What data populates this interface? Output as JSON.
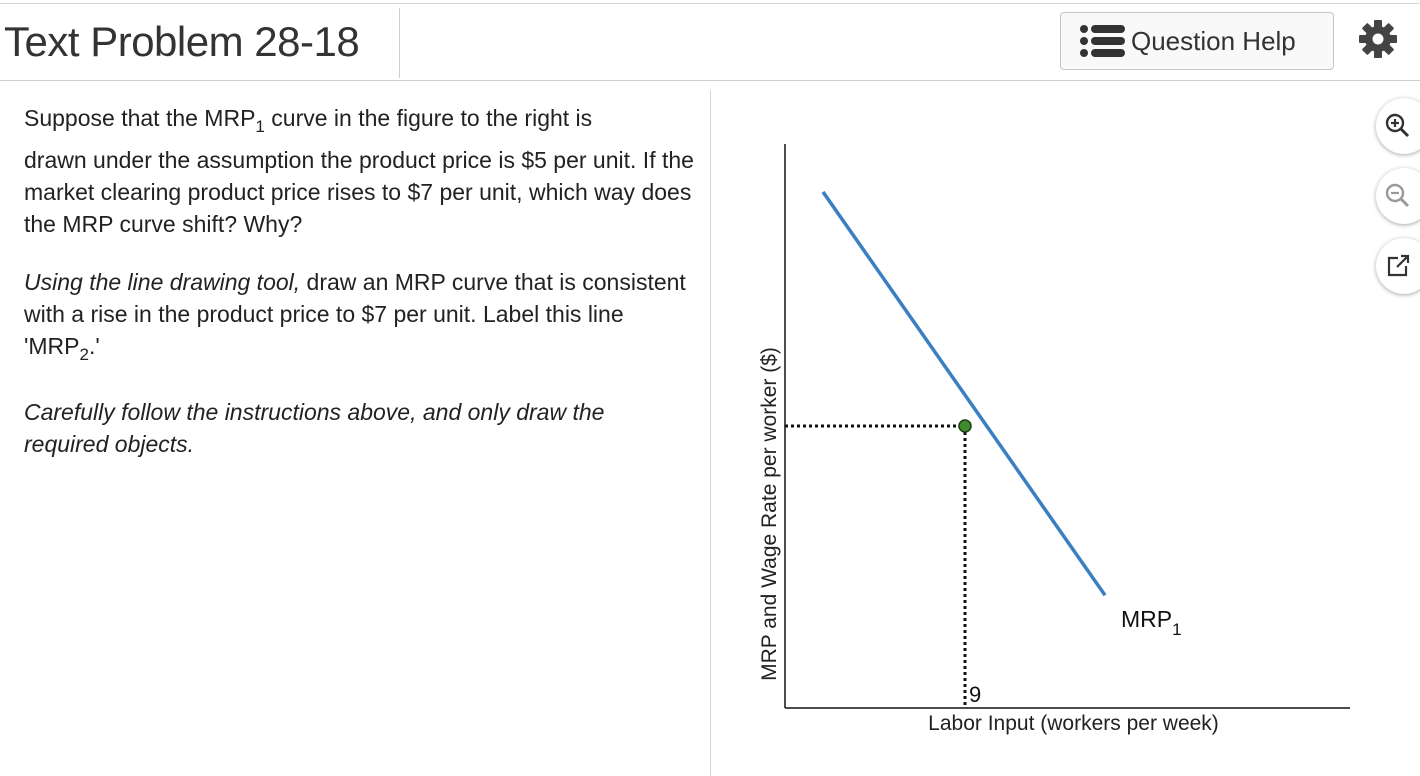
{
  "header": {
    "title": "Text Problem 28-18",
    "help_label": "Question Help"
  },
  "prompt": {
    "p1_before": "Suppose that the MRP",
    "p1_sub": "1",
    "p1_after": " curve in the figure to the right is",
    "p1_rest": "drawn under the assumption the product price is $5 per unit. If the market clearing product price rises to $7 per unit, which way does the MRP curve shift? Why?",
    "p2_italic": "Using the line drawing tool,",
    "p2_text": " draw an MRP curve that is consistent with a rise in the product price to $7 per unit. Label this line 'MRP",
    "p2_sub": "2",
    "p2_end": ".'",
    "p3_italic": "Carefully follow the instructions above, and only draw the required objects."
  },
  "chart_data": {
    "type": "line",
    "xlabel": "Labor Input (workers per week)",
    "ylabel": "MRP and Wage Rate per worker ($)",
    "x_tick_labels": [
      "9"
    ],
    "series": [
      {
        "name": "MRP1",
        "label_main": "MRP",
        "label_sub": "1",
        "color": "#3a7fc1",
        "points": [
          [
            1.9,
            18.3
          ],
          [
            16.0,
            4.0
          ]
        ]
      }
    ],
    "marked_point": {
      "x": 9,
      "y": 10.0,
      "color": "#3f8a2c"
    },
    "xlim": [
      0,
      20
    ],
    "ylim": [
      0,
      20
    ],
    "dotted_guides": true,
    "grid": false
  },
  "tools": {
    "zoom_in": "zoom-in",
    "zoom_out": "zoom-out",
    "popout": "popout"
  }
}
